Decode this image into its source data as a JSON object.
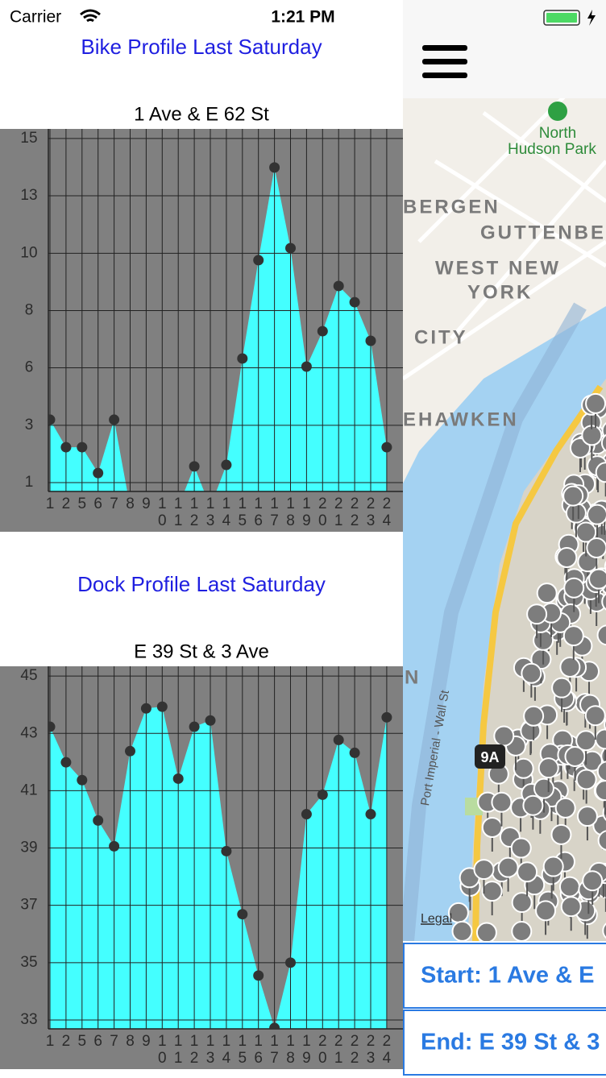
{
  "status_bar": {
    "carrier": "Carrier",
    "time": "1:21 PM"
  },
  "sections": [
    {
      "heading": "Bike Profile Last Saturday"
    },
    {
      "heading": "Dock Profile Last Saturday"
    }
  ],
  "chart_data": [
    {
      "type": "area",
      "title": "1 Ave & E 62 St",
      "categories": [
        "1",
        "2",
        "5",
        "6",
        "7",
        "8",
        "9",
        "10",
        "11",
        "12",
        "13",
        "14",
        "15",
        "16",
        "17",
        "18",
        "19",
        "20",
        "21",
        "22",
        "23",
        "24"
      ],
      "values": [
        3.56,
        2.44,
        2.44,
        1.39,
        3.56,
        0,
        0,
        0,
        0,
        1.66,
        0,
        1.72,
        6.05,
        10.05,
        13.82,
        10.54,
        5.72,
        7.16,
        9.0,
        8.34,
        6.77,
        2.44
      ],
      "color": "#44ffff",
      "marker_color": "#333333",
      "background": "#808080",
      "grid": true,
      "ylim": [
        0.64,
        15.39
      ],
      "yticks": [
        1,
        {
          "value": 3.33,
          "label": "3"
        },
        {
          "value": 5.67,
          "label": "6"
        },
        8,
        {
          "value": 10.33,
          "label": "10"
        },
        {
          "value": 12.67,
          "label": "13"
        },
        15
      ]
    },
    {
      "type": "area",
      "title": "E 39 St & 3 Ave",
      "categories": [
        "1",
        "2",
        "5",
        "6",
        "7",
        "8",
        "9",
        "10",
        "11",
        "12",
        "13",
        "14",
        "15",
        "16",
        "17",
        "18",
        "19",
        "20",
        "21",
        "22",
        "23",
        "24"
      ],
      "values": [
        43.23,
        41.99,
        41.37,
        39.96,
        39.06,
        42.38,
        43.87,
        43.93,
        41.42,
        43.23,
        43.45,
        38.89,
        36.69,
        34.55,
        32.72,
        35.0,
        40.18,
        40.86,
        42.77,
        42.32,
        40.18,
        43.56
      ],
      "color": "#44ffff",
      "marker_color": "#333333",
      "background": "#808080",
      "grid": true,
      "ylim": [
        32.69,
        45.34
      ],
      "yticks": [
        33,
        35,
        37,
        39,
        41,
        43,
        45
      ]
    }
  ],
  "map": {
    "labels": [
      "North",
      "Hudson Park",
      "BERGEN",
      "GUTTENBE",
      "WEST NEW",
      "YORK",
      "CITY",
      "EHAWKEN",
      "N",
      "Port Imperial - Wall St",
      "9A",
      "Legal"
    ]
  },
  "buttons": {
    "start": "Start: 1 Ave & E",
    "end": "End: E 39 St & 3"
  }
}
